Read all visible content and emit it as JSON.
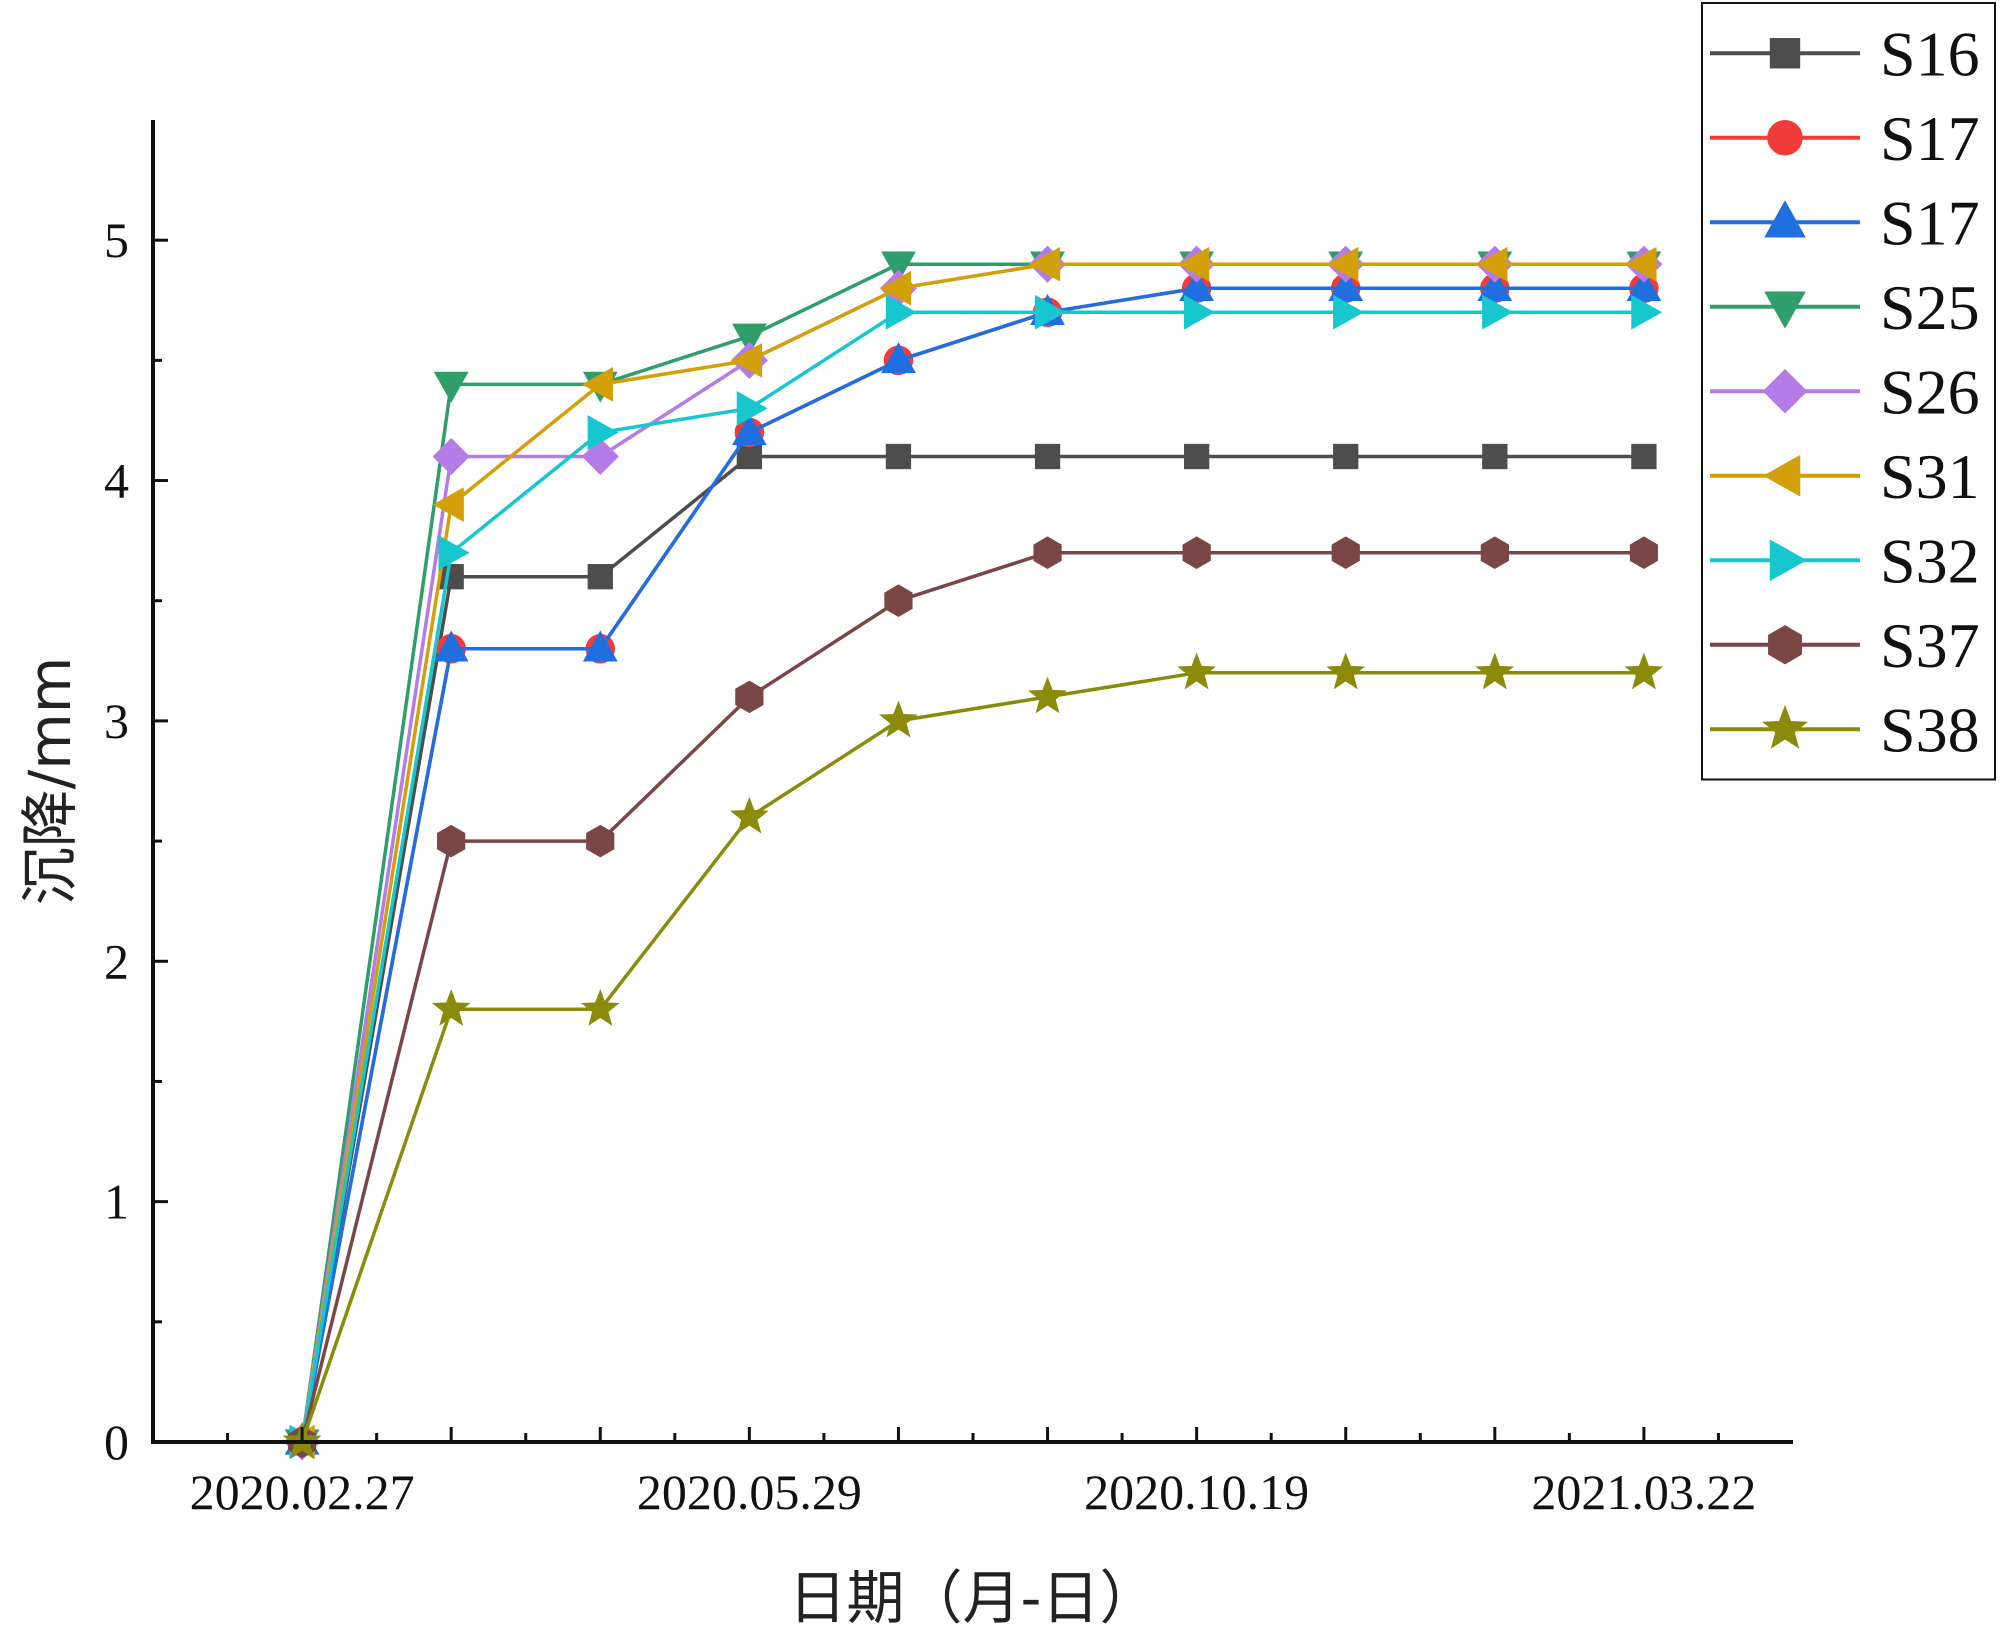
{
  "chart_data": {
    "type": "line",
    "title": "",
    "xlabel": "日期（月-日）",
    "ylabel": "沉降/mm",
    "x_tick_labels": [
      "2020.02.27",
      "2020.05.29",
      "2020.10.19",
      "2021.03.22"
    ],
    "x_tick_label_indices": [
      0,
      3,
      6,
      9
    ],
    "x_index_range": [
      -1,
      10
    ],
    "ylim": [
      0,
      5.5
    ],
    "y_major_ticks": [
      0,
      1,
      2,
      3,
      4,
      5
    ],
    "y_tick_labels": [
      "0",
      "1",
      "2",
      "3",
      "4",
      "5"
    ],
    "grid": false,
    "legend_position": "top-right",
    "series": [
      {
        "name": "S16",
        "color": "#4d4d4d",
        "marker": "square",
        "values": [
          0,
          3.6,
          3.6,
          4.1,
          4.1,
          4.1,
          4.1,
          4.1,
          4.1,
          4.1
        ]
      },
      {
        "name": "S17",
        "color": "#f23c3c",
        "marker": "circle",
        "values": [
          0,
          3.3,
          3.3,
          4.2,
          4.5,
          4.7,
          4.8,
          4.8,
          4.8,
          4.8
        ]
      },
      {
        "name": "S17",
        "color": "#1f6fe0",
        "marker": "triangle-up",
        "values": [
          0,
          3.3,
          3.3,
          4.2,
          4.5,
          4.7,
          4.8,
          4.8,
          4.8,
          4.8
        ]
      },
      {
        "name": "S25",
        "color": "#2e9e6a",
        "marker": "triangle-down",
        "values": [
          0,
          4.4,
          4.4,
          4.6,
          4.9,
          4.9,
          4.9,
          4.9,
          4.9,
          4.9
        ]
      },
      {
        "name": "S26",
        "color": "#b57be6",
        "marker": "diamond",
        "values": [
          0,
          4.1,
          4.1,
          4.5,
          4.8,
          4.9,
          4.9,
          4.9,
          4.9,
          4.9
        ]
      },
      {
        "name": "S31",
        "color": "#d4a00a",
        "marker": "triangle-left",
        "values": [
          0,
          3.9,
          4.4,
          4.5,
          4.8,
          4.9,
          4.9,
          4.9,
          4.9,
          4.9
        ]
      },
      {
        "name": "S32",
        "color": "#17c7cf",
        "marker": "triangle-right",
        "values": [
          0,
          3.7,
          4.2,
          4.3,
          4.7,
          4.7,
          4.7,
          4.7,
          4.7,
          4.7
        ]
      },
      {
        "name": "S37",
        "color": "#7b4646",
        "marker": "hexagon",
        "values": [
          0,
          2.5,
          2.5,
          3.1,
          3.5,
          3.7,
          3.7,
          3.7,
          3.7,
          3.7
        ]
      },
      {
        "name": "S38",
        "color": "#8b8b0b",
        "marker": "star",
        "values": [
          0,
          1.8,
          1.8,
          2.6,
          3.0,
          3.1,
          3.2,
          3.2,
          3.2,
          3.2
        ]
      }
    ]
  }
}
